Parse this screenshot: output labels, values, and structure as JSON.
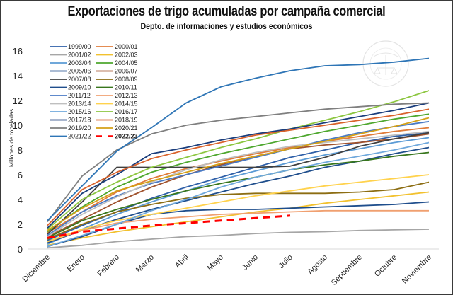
{
  "chart_data": {
    "type": "line",
    "title": "Exportaciones de trigo acumuladas por campaña comercial",
    "subtitle": "Depto. de informaciones y estudios económicos",
    "xlabel": "",
    "ylabel": "Millones de toneladas",
    "ylim": [
      0,
      16
    ],
    "yticks": [
      "0",
      "2",
      "4",
      "6",
      "8",
      "10",
      "12",
      "14",
      "16"
    ],
    "grid": false,
    "legend_position": "top-left",
    "categories": [
      "Diciembre",
      "Enero",
      "Febrero",
      "Marzo",
      "Abril",
      "Mayo",
      "Junio",
      "Julio",
      "Agosto",
      "Septiembre",
      "Octubre",
      "Noviembre"
    ],
    "series": [
      {
        "name": "1999/00",
        "color": "#2e5fa8",
        "dash": false,
        "values": [
          0.7,
          1.9,
          3.0,
          4.1,
          5.0,
          5.8,
          6.6,
          7.4,
          8.0,
          8.6,
          9.1,
          9.4
        ]
      },
      {
        "name": "2000/01",
        "color": "#e07b39",
        "dash": false,
        "values": [
          1.3,
          3.0,
          4.6,
          5.7,
          6.5,
          7.1,
          7.7,
          8.2,
          8.7,
          9.1,
          9.5,
          9.8
        ]
      },
      {
        "name": "2001/02",
        "color": "#a6a6a6",
        "dash": false,
        "values": [
          0.1,
          0.3,
          0.6,
          0.8,
          1.0,
          1.1,
          1.25,
          1.35,
          1.4,
          1.5,
          1.55,
          1.6
        ]
      },
      {
        "name": "2002/03",
        "color": "#f2c12e",
        "dash": false,
        "values": [
          0.3,
          0.9,
          1.4,
          1.8,
          2.2,
          2.6,
          3.0,
          3.3,
          3.7,
          4.0,
          4.3,
          4.6
        ]
      },
      {
        "name": "2003/04",
        "color": "#5b9bd5",
        "dash": false,
        "values": [
          0.4,
          1.6,
          2.8,
          3.8,
          4.7,
          5.6,
          6.3,
          7.0,
          7.6,
          8.1,
          8.6,
          9.0
        ]
      },
      {
        "name": "2004/05",
        "color": "#4ea72e",
        "dash": false,
        "values": [
          1.4,
          3.4,
          5.0,
          6.2,
          7.0,
          7.7,
          8.3,
          8.9,
          9.5,
          10.0,
          10.5,
          10.9
        ]
      },
      {
        "name": "2005/06",
        "color": "#1f4e8c",
        "dash": false,
        "values": [
          0.5,
          1.5,
          2.4,
          3.2,
          3.9,
          4.6,
          5.3,
          5.9,
          6.6,
          7.1,
          7.7,
          8.2
        ]
      },
      {
        "name": "2006/07",
        "color": "#a0522d",
        "dash": false,
        "values": [
          1.0,
          2.4,
          3.8,
          5.0,
          6.0,
          6.8,
          7.5,
          8.1,
          8.4,
          8.6,
          8.9,
          9.3
        ]
      },
      {
        "name": "2007/08",
        "color": "#404040",
        "dash": false,
        "values": [
          1.2,
          3.8,
          6.6,
          6.6,
          6.6,
          6.6,
          6.6,
          6.7,
          7.4,
          8.3,
          8.9,
          9.4
        ]
      },
      {
        "name": "2008/09",
        "color": "#8c6d12",
        "dash": false,
        "values": [
          0.8,
          2.0,
          3.0,
          3.6,
          4.1,
          4.4,
          4.5,
          4.5,
          4.5,
          4.6,
          4.8,
          5.4
        ]
      },
      {
        "name": "2009/10",
        "color": "#1f4e8c",
        "dash": false,
        "values": [
          0.2,
          1.0,
          2.0,
          2.8,
          3.1,
          3.2,
          3.2,
          3.3,
          3.4,
          3.5,
          3.6,
          3.8
        ]
      },
      {
        "name": "2010/11",
        "color": "#38761d",
        "dash": false,
        "values": [
          0.9,
          2.3,
          3.2,
          4.0,
          4.7,
          5.3,
          5.8,
          6.4,
          6.8,
          7.1,
          7.5,
          7.8
        ]
      },
      {
        "name": "2011/12",
        "color": "#4a7ac4",
        "dash": false,
        "values": [
          1.1,
          3.0,
          4.3,
          5.3,
          6.0,
          6.7,
          7.4,
          8.1,
          8.8,
          9.4,
          9.9,
          10.3
        ]
      },
      {
        "name": "2012/13",
        "color": "#f0a070",
        "dash": false,
        "values": [
          0.6,
          1.5,
          2.1,
          2.4,
          2.6,
          2.8,
          2.9,
          3.0,
          3.1,
          3.1,
          3.1,
          3.1
        ]
      },
      {
        "name": "2013/14",
        "color": "#bfbfbf",
        "dash": false,
        "values": [
          1.0,
          2.8,
          4.2,
          5.4,
          6.4,
          7.2,
          7.8,
          8.3,
          8.6,
          8.9,
          9.2,
          9.5
        ]
      },
      {
        "name": "2014/15",
        "color": "#ffd24d",
        "dash": false,
        "values": [
          0.6,
          1.6,
          2.3,
          2.8,
          3.3,
          3.8,
          4.3,
          4.7,
          5.1,
          5.4,
          5.7,
          6.0
        ]
      },
      {
        "name": "2015/16",
        "color": "#6fa8dc",
        "dash": false,
        "values": [
          0.2,
          1.1,
          2.0,
          3.1,
          4.0,
          5.0,
          5.8,
          6.4,
          7.0,
          7.5,
          8.0,
          8.6
        ]
      },
      {
        "name": "2016/17",
        "color": "#8cc63f",
        "dash": false,
        "values": [
          1.6,
          4.0,
          5.4,
          6.6,
          7.4,
          8.2,
          8.9,
          9.7,
          10.4,
          11.1,
          11.9,
          12.8
        ]
      },
      {
        "name": "2017/18",
        "color": "#1a3d7c",
        "dash": false,
        "values": [
          1.7,
          4.5,
          6.0,
          7.7,
          8.2,
          8.8,
          9.3,
          9.7,
          10.2,
          10.7,
          11.2,
          11.8
        ]
      },
      {
        "name": "2018/19",
        "color": "#d9622b",
        "dash": false,
        "values": [
          1.9,
          4.8,
          6.2,
          7.3,
          8.0,
          8.6,
          9.2,
          9.6,
          10.0,
          10.4,
          10.8,
          11.3
        ]
      },
      {
        "name": "2019/20",
        "color": "#7f7f7f",
        "dash": false,
        "values": [
          2.2,
          5.9,
          8.0,
          9.3,
          10.0,
          10.4,
          10.7,
          11.0,
          11.3,
          11.5,
          11.7,
          11.8
        ]
      },
      {
        "name": "2020/21",
        "color": "#d4a017",
        "dash": false,
        "values": [
          1.5,
          3.3,
          4.7,
          5.5,
          6.2,
          6.9,
          7.5,
          8.1,
          8.7,
          9.3,
          9.9,
          10.6
        ]
      },
      {
        "name": "2021/22",
        "color": "#2e75b6",
        "dash": false,
        "values": [
          2.3,
          5.1,
          7.9,
          9.8,
          11.8,
          13.1,
          13.8,
          14.4,
          14.8,
          14.9,
          15.1,
          15.4
        ]
      },
      {
        "name": "2022/23",
        "color": "#ff0000",
        "dash": true,
        "values": [
          0.9,
          1.4,
          1.65,
          1.9,
          2.1,
          2.3,
          2.5,
          2.7
        ]
      }
    ],
    "watermark": "Bolsa de Comercio de Rosario"
  }
}
